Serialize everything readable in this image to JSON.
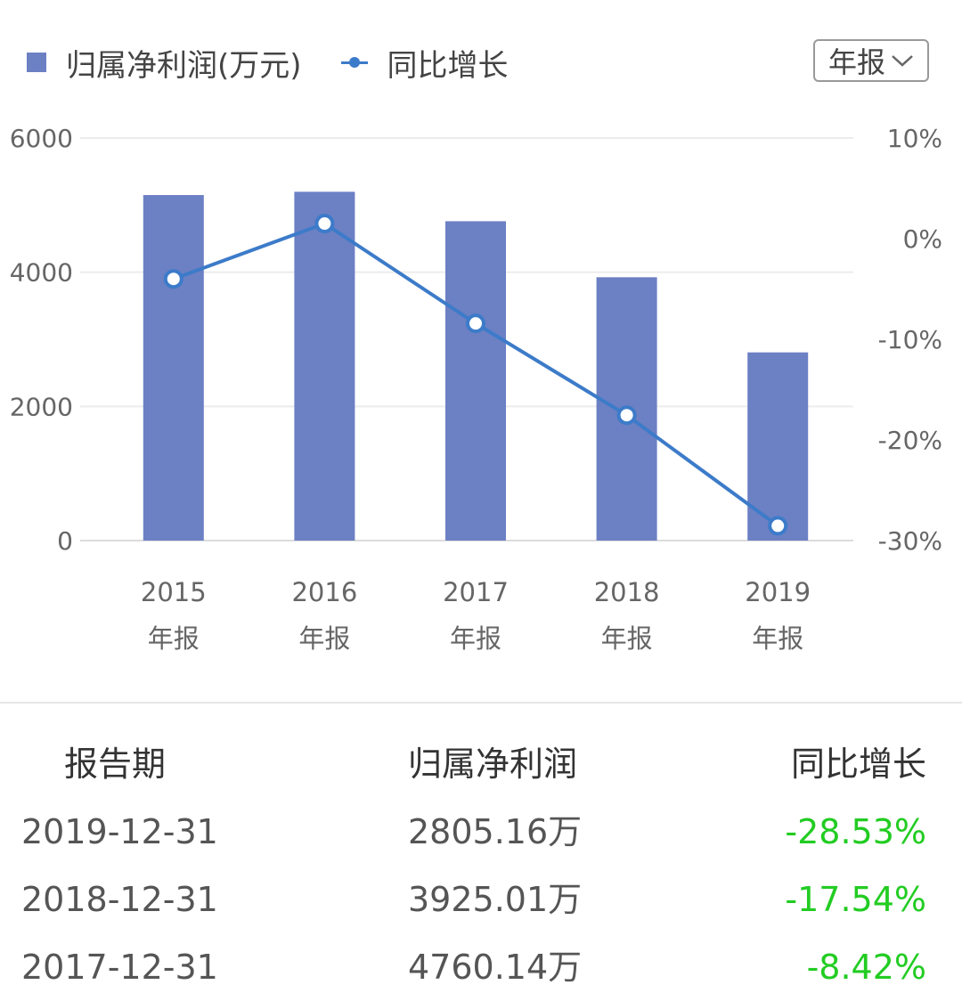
{
  "legend": {
    "bar_label": "归属净利润(万元)",
    "line_label": "同比增长"
  },
  "period_select": {
    "selected": "年报"
  },
  "colors": {
    "bar": "#6c80c4",
    "line": "#3c7bc9",
    "negative_change": "#22cc22"
  },
  "chart_data": {
    "type": "bar",
    "categories": [
      "2015 年报",
      "2016 年报",
      "2017 年报",
      "2018 年报",
      "2019 年报"
    ],
    "category_lines": [
      [
        "2015",
        "年报"
      ],
      [
        "2016",
        "年报"
      ],
      [
        "2017",
        "年报"
      ],
      [
        "2018",
        "年报"
      ],
      [
        "2019",
        "年报"
      ]
    ],
    "series": [
      {
        "name": "归属净利润(万元)",
        "type": "bar",
        "axis": "left",
        "values": [
          5150,
          5199,
          4760.14,
          3925.01,
          2805.16
        ]
      },
      {
        "name": "同比增长",
        "type": "line",
        "axis": "right",
        "values": [
          -4.0,
          1.5,
          -8.42,
          -17.54,
          -28.53
        ]
      }
    ],
    "y_left": {
      "min": 0,
      "max": 6000,
      "ticks": [
        "0",
        "2000",
        "4000",
        "6000"
      ]
    },
    "y_right": {
      "min": -30,
      "max": 10,
      "ticks": [
        "-30%",
        "-20%",
        "-10%",
        "0%",
        "10%"
      ]
    },
    "grid": true,
    "legend_position": "top-left"
  },
  "table": {
    "headers": [
      "报告期",
      "归属净利润",
      "同比增长"
    ],
    "rows": [
      {
        "date": "2019-12-31",
        "value": "2805.16万",
        "change": "-28.53%"
      },
      {
        "date": "2018-12-31",
        "value": "3925.01万",
        "change": "-17.54%"
      },
      {
        "date": "2017-12-31",
        "value": "4760.14万",
        "change": "-8.42%"
      }
    ]
  }
}
